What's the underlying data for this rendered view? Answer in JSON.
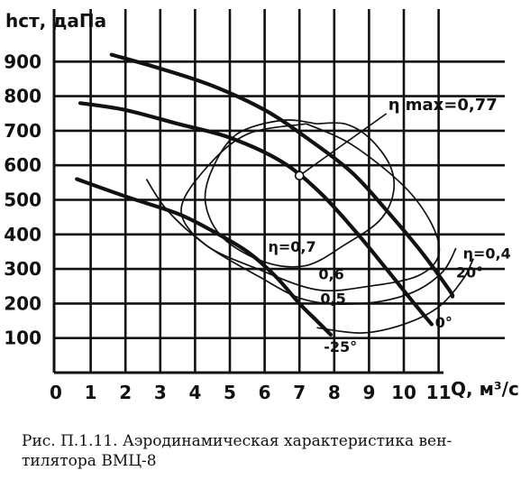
{
  "chart_data": {
    "type": "line",
    "ylabel": "hст, даПа",
    "xlabel": "Q, м³/с",
    "xlim": [
      0,
      13
    ],
    "ylim": [
      0,
      1000
    ],
    "x_ticks": [
      0,
      1,
      2,
      3,
      4,
      5,
      6,
      7,
      8,
      9,
      10,
      11
    ],
    "y_ticks": [
      100,
      200,
      300,
      400,
      500,
      600,
      700,
      800,
      900
    ],
    "grid": true,
    "pressure_curves": [
      {
        "label": "20°",
        "points": [
          [
            1.6,
            920
          ],
          [
            3,
            880
          ],
          [
            4.5,
            830
          ],
          [
            6,
            760
          ],
          [
            7.2,
            680
          ],
          [
            8.5,
            580
          ],
          [
            9.5,
            470
          ],
          [
            10.5,
            350
          ],
          [
            11.3,
            240
          ],
          [
            11.4,
            220
          ]
        ]
      },
      {
        "label": "0°",
        "points": [
          [
            0.7,
            780
          ],
          [
            2,
            760
          ],
          [
            3.5,
            720
          ],
          [
            5,
            680
          ],
          [
            6.5,
            610
          ],
          [
            7.6,
            520
          ],
          [
            8.6,
            410
          ],
          [
            9.5,
            300
          ],
          [
            10.3,
            200
          ],
          [
            10.8,
            140
          ]
        ]
      },
      {
        "label": "-25°",
        "points": [
          [
            0.6,
            560
          ],
          [
            2,
            510
          ],
          [
            3.5,
            460
          ],
          [
            4.5,
            410
          ],
          [
            5.5,
            350
          ],
          [
            6.3,
            280
          ],
          [
            7,
            200
          ],
          [
            7.5,
            150
          ],
          [
            7.9,
            110
          ]
        ]
      }
    ],
    "efficiency_contours": [
      {
        "label": "η=0,7",
        "points": [
          [
            7.5,
            720
          ],
          [
            6.5,
            730
          ],
          [
            5.2,
            690
          ],
          [
            4.5,
            590
          ],
          [
            4.3,
            490
          ],
          [
            4.8,
            390
          ],
          [
            6,
            320
          ],
          [
            7.2,
            310
          ],
          [
            8.3,
            370
          ],
          [
            9.3,
            440
          ],
          [
            9.7,
            520
          ],
          [
            9.6,
            600
          ],
          [
            9,
            680
          ],
          [
            8.3,
            720
          ],
          [
            7.5,
            720
          ]
        ]
      },
      {
        "label": "0,6",
        "points": [
          [
            7.2,
            720
          ],
          [
            5.5,
            690
          ],
          [
            4.3,
            590
          ],
          [
            3.6,
            470
          ],
          [
            4.3,
            370
          ],
          [
            5.8,
            300
          ],
          [
            7.5,
            240
          ],
          [
            9,
            250
          ],
          [
            10.4,
            280
          ],
          [
            11,
            340
          ],
          [
            10.8,
            430
          ],
          [
            10,
            540
          ],
          [
            8.5,
            660
          ],
          [
            7.2,
            720
          ]
        ]
      },
      {
        "label": "0,5",
        "points": [
          [
            2.6,
            560
          ],
          [
            3.2,
            470
          ],
          [
            4.3,
            370
          ],
          [
            5.8,
            280
          ],
          [
            7.2,
            210
          ],
          [
            8.8,
            200
          ],
          [
            10.2,
            230
          ],
          [
            11.1,
            290
          ],
          [
            11.5,
            360
          ]
        ]
      },
      {
        "label": "η=0,4",
        "points": [
          [
            7.5,
            130
          ],
          [
            8.8,
            115
          ],
          [
            10,
            140
          ],
          [
            11,
            190
          ],
          [
            11.7,
            270
          ],
          [
            12,
            330
          ]
        ]
      }
    ],
    "max_point": {
      "label": "η max=0,77",
      "x": 7.0,
      "y": 570
    },
    "max_label_pos": {
      "x": 9.5,
      "y": 760
    },
    "value_labels": [
      {
        "text": "η=0,7",
        "x": 6.1,
        "y": 350
      },
      {
        "text": "0,6",
        "x": 7.55,
        "y": 270
      },
      {
        "text": "0,5",
        "x": 7.6,
        "y": 200
      },
      {
        "text": "η=0,4",
        "x": 11.7,
        "y": 330
      },
      {
        "text": "20°",
        "x": 11.5,
        "y": 275
      },
      {
        "text": "0°",
        "x": 10.9,
        "y": 130
      },
      {
        "text": "-25°",
        "x": 7.7,
        "y": 60
      }
    ]
  },
  "caption": {
    "line1": "Рис. П.1.11. Аэродинамическая характеристика вен-",
    "line2": "тилятора ВМЦ-8"
  }
}
